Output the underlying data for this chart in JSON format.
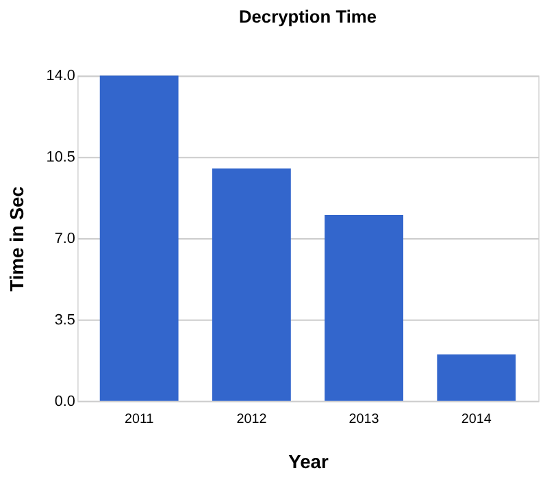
{
  "chart_data": {
    "type": "bar",
    "title": "Decryption Time",
    "xlabel": "Year",
    "ylabel": "Time in Sec",
    "categories": [
      "2011",
      "2012",
      "2013",
      "2014"
    ],
    "values": [
      14,
      10,
      8,
      2
    ],
    "color": "#3366cc",
    "ylim": [
      0,
      14
    ],
    "yticks": [
      {
        "value": 0,
        "label": "0.0"
      },
      {
        "value": 3.5,
        "label": "3.5"
      },
      {
        "value": 7,
        "label": "7.0"
      },
      {
        "value": 10.5,
        "label": "10.5"
      },
      {
        "value": 14,
        "label": "14.0"
      }
    ],
    "grid": "y"
  }
}
